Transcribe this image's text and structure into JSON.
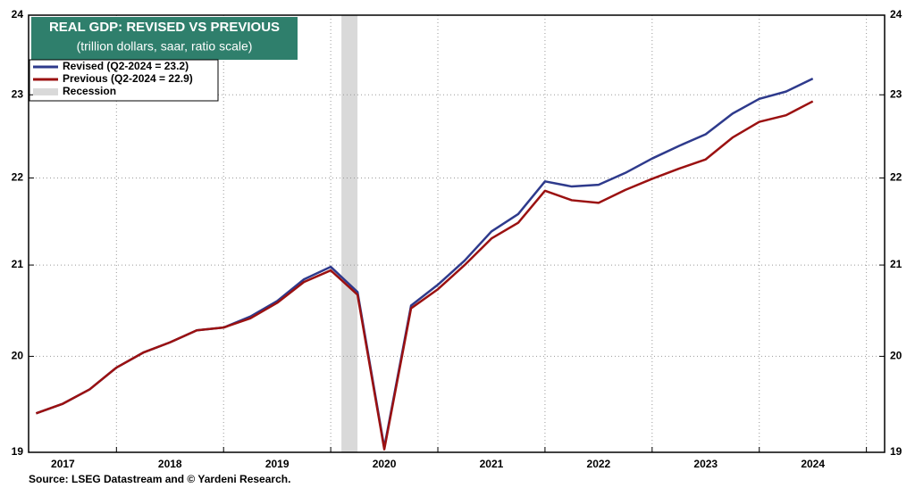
{
  "chart_data": {
    "type": "line",
    "title": "REAL GDP: REVISED VS PREVIOUS",
    "subtitle": "(trillion dollars, saar, ratio scale)",
    "source": "Source: LSEG Datastream and © Yardeni Research.",
    "log_scale": true,
    "grid": true,
    "legend": "top-left",
    "x": [
      2017.25,
      2017.5,
      2017.75,
      2018.0,
      2018.25,
      2018.5,
      2018.75,
      2019.0,
      2019.25,
      2019.5,
      2019.75,
      2020.0,
      2020.25,
      2020.5,
      2020.75,
      2021.0,
      2021.25,
      2021.5,
      2021.75,
      2022.0,
      2022.25,
      2022.5,
      2022.75,
      2023.0,
      2023.25,
      2023.5,
      2023.75,
      2024.0,
      2024.25,
      2024.5
    ],
    "series": [
      {
        "name": "Revised (Q2-2024 = 23.2)",
        "color": "#2e3a8c",
        "values": [
          19.4,
          19.5,
          19.65,
          19.88,
          20.04,
          20.15,
          20.28,
          20.31,
          20.43,
          20.6,
          20.84,
          20.98,
          20.7,
          19.05,
          20.55,
          20.78,
          21.05,
          21.38,
          21.58,
          21.96,
          21.9,
          21.92,
          22.06,
          22.23,
          22.38,
          22.52,
          22.77,
          22.95,
          23.04,
          23.2
        ]
      },
      {
        "name": "Previous (Q2-2024 = 22.9)",
        "color": "#9b1111",
        "values": [
          19.4,
          19.5,
          19.65,
          19.88,
          20.04,
          20.15,
          20.28,
          20.31,
          20.41,
          20.58,
          20.81,
          20.94,
          20.67,
          19.03,
          20.52,
          20.73,
          21.0,
          21.3,
          21.48,
          21.85,
          21.74,
          21.71,
          21.86,
          21.99,
          22.11,
          22.22,
          22.48,
          22.67,
          22.75,
          22.92
        ]
      }
    ],
    "recession": {
      "name": "Recession",
      "color": "#d9d9d9",
      "start": 2020.1,
      "end": 2020.25
    },
    "xlim": [
      2017.18,
      2025.17
    ],
    "xticks": [
      {
        "value": 2017.5,
        "label": "2017"
      },
      {
        "value": 2018.5,
        "label": "2018"
      },
      {
        "value": 2019.5,
        "label": "2019"
      },
      {
        "value": 2020.5,
        "label": "2020"
      },
      {
        "value": 2021.5,
        "label": "2021"
      },
      {
        "value": 2022.5,
        "label": "2022"
      },
      {
        "value": 2023.5,
        "label": "2023"
      },
      {
        "value": 2024.5,
        "label": "2024"
      }
    ],
    "xgrid": [
      2018,
      2019,
      2020,
      2021,
      2022,
      2023,
      2024,
      2025
    ],
    "ylim": [
      19,
      24
    ],
    "yticks": [
      19,
      20,
      21,
      22,
      23,
      24
    ]
  }
}
